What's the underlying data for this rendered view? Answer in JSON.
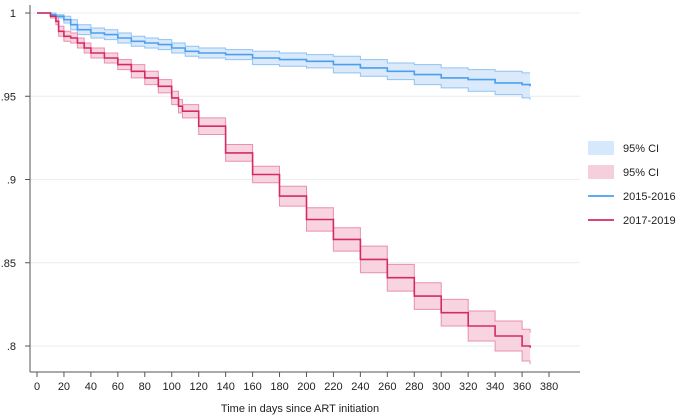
{
  "chart_data": {
    "type": "line",
    "title": "",
    "xlabel": "Time in days since ART initiation",
    "ylabel": "",
    "xlim": [
      0,
      380
    ],
    "ylim": [
      0.79,
      1.0
    ],
    "x_ticks": [
      0,
      20,
      40,
      60,
      80,
      100,
      120,
      140,
      160,
      180,
      200,
      220,
      240,
      260,
      280,
      300,
      320,
      340,
      360,
      380
    ],
    "y_ticks": [
      0.8,
      0.85,
      0.9,
      0.95,
      1.0
    ],
    "y_tick_labels": [
      ".8",
      ".85",
      ".9",
      ".95",
      "1"
    ],
    "grid": true,
    "legend_position": "right",
    "legend": [
      {
        "label": "95% CI",
        "kind": "band",
        "color": "#d6e8fb"
      },
      {
        "label": "95% CI",
        "kind": "band",
        "color": "#f6cfdc"
      },
      {
        "label": "2015-2016",
        "kind": "line",
        "color": "#4a9ff0"
      },
      {
        "label": "2017-2019",
        "kind": "line",
        "color": "#d62a63"
      }
    ],
    "series": [
      {
        "name": "2015-2016",
        "color": "#4a9ff0",
        "band_color": "#d6e8fb",
        "band_edge_color": "#8fc2f4",
        "x": [
          0,
          5,
          10,
          14,
          20,
          25,
          30,
          40,
          50,
          60,
          70,
          80,
          90,
          100,
          110,
          120,
          140,
          160,
          180,
          200,
          220,
          240,
          260,
          280,
          300,
          320,
          340,
          360,
          366
        ],
        "y": [
          1.0,
          1.0,
          0.999,
          0.998,
          0.996,
          0.993,
          0.99,
          0.988,
          0.987,
          0.985,
          0.983,
          0.982,
          0.981,
          0.979,
          0.977,
          0.976,
          0.975,
          0.973,
          0.972,
          0.971,
          0.969,
          0.967,
          0.965,
          0.963,
          0.961,
          0.96,
          0.958,
          0.957,
          0.956
        ],
        "lower": [
          1.0,
          1.0,
          0.998,
          0.997,
          0.994,
          0.99,
          0.987,
          0.985,
          0.984,
          0.982,
          0.98,
          0.979,
          0.978,
          0.976,
          0.974,
          0.973,
          0.972,
          0.969,
          0.968,
          0.967,
          0.964,
          0.962,
          0.96,
          0.957,
          0.955,
          0.953,
          0.951,
          0.949,
          0.948
        ],
        "upper": [
          1.0,
          1.0,
          1.0,
          0.999,
          0.998,
          0.996,
          0.993,
          0.991,
          0.99,
          0.988,
          0.986,
          0.985,
          0.984,
          0.982,
          0.98,
          0.979,
          0.978,
          0.977,
          0.976,
          0.975,
          0.974,
          0.972,
          0.97,
          0.969,
          0.967,
          0.966,
          0.965,
          0.964,
          0.964
        ]
      },
      {
        "name": "2017-2019",
        "color": "#d62a63",
        "band_color": "#f6cfdc",
        "band_edge_color": "#ea8fae",
        "x": [
          0,
          5,
          10,
          14,
          16,
          20,
          25,
          30,
          35,
          40,
          50,
          60,
          70,
          80,
          90,
          100,
          105,
          108,
          120,
          140,
          160,
          180,
          200,
          220,
          240,
          260,
          280,
          300,
          320,
          340,
          360,
          366
        ],
        "y": [
          1.0,
          1.0,
          0.998,
          0.995,
          0.989,
          0.986,
          0.985,
          0.982,
          0.979,
          0.976,
          0.973,
          0.969,
          0.965,
          0.961,
          0.956,
          0.949,
          0.944,
          0.941,
          0.932,
          0.916,
          0.903,
          0.89,
          0.876,
          0.864,
          0.852,
          0.841,
          0.83,
          0.82,
          0.812,
          0.806,
          0.8,
          0.799
        ],
        "lower": [
          1.0,
          1.0,
          0.997,
          0.993,
          0.986,
          0.983,
          0.982,
          0.979,
          0.976,
          0.973,
          0.97,
          0.966,
          0.961,
          0.957,
          0.952,
          0.945,
          0.94,
          0.937,
          0.927,
          0.911,
          0.898,
          0.884,
          0.869,
          0.857,
          0.844,
          0.833,
          0.822,
          0.812,
          0.803,
          0.797,
          0.791,
          0.789
        ],
        "upper": [
          1.0,
          1.0,
          0.999,
          0.997,
          0.992,
          0.989,
          0.988,
          0.985,
          0.982,
          0.979,
          0.976,
          0.972,
          0.969,
          0.965,
          0.96,
          0.953,
          0.948,
          0.945,
          0.937,
          0.921,
          0.908,
          0.896,
          0.883,
          0.871,
          0.86,
          0.849,
          0.838,
          0.828,
          0.821,
          0.815,
          0.81,
          0.808
        ]
      }
    ]
  }
}
